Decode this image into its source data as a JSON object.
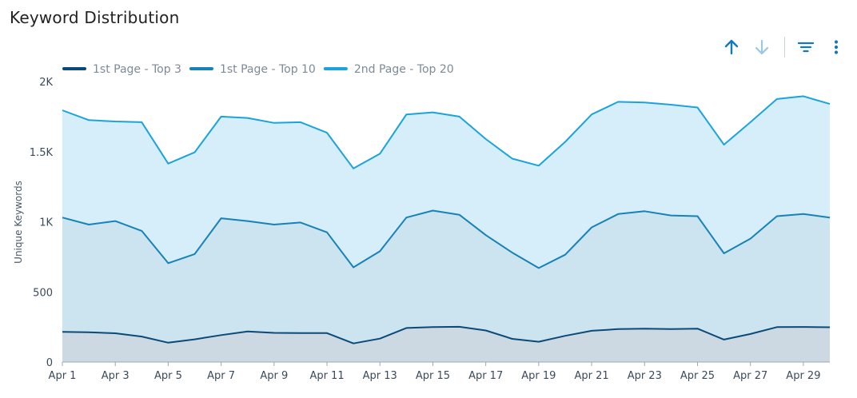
{
  "header": {
    "title": "Keyword Distribution"
  },
  "toolbar": {
    "buttons": [
      {
        "icon": "arrow-up-icon",
        "color": "#1479b8"
      },
      {
        "icon": "arrow-down-icon",
        "color": "#9cc7e4"
      },
      {
        "icon": "filter-icon",
        "color": "#1479b8"
      },
      {
        "icon": "more-vertical-icon",
        "color": "#1479b8"
      }
    ]
  },
  "chart_data": {
    "type": "area",
    "title": "",
    "xlabel": "",
    "ylabel": "Unique Keywords",
    "ylim": [
      0,
      2000
    ],
    "yticks": [
      {
        "value": 0,
        "label": "0"
      },
      {
        "value": 500,
        "label": "500"
      },
      {
        "value": 1000,
        "label": "1K"
      },
      {
        "value": 1500,
        "label": "1.5K"
      },
      {
        "value": 2000,
        "label": "2K"
      }
    ],
    "grid": false,
    "legend": "top-left",
    "x": [
      "Apr 1",
      "Apr 2",
      "Apr 3",
      "Apr 4",
      "Apr 5",
      "Apr 6",
      "Apr 7",
      "Apr 8",
      "Apr 9",
      "Apr 10",
      "Apr 11",
      "Apr 12",
      "Apr 13",
      "Apr 14",
      "Apr 15",
      "Apr 16",
      "Apr 17",
      "Apr 18",
      "Apr 19",
      "Apr 20",
      "Apr 21",
      "Apr 22",
      "Apr 23",
      "Apr 24",
      "Apr 25",
      "Apr 26",
      "Apr 27",
      "Apr 28",
      "Apr 29",
      "Apr 30"
    ],
    "xtick_labels": [
      "Apr 1",
      "Apr 3",
      "Apr 5",
      "Apr 7",
      "Apr 9",
      "Apr 11",
      "Apr 13",
      "Apr 15",
      "Apr 17",
      "Apr 19",
      "Apr 21",
      "Apr 23",
      "Apr 25",
      "Apr 27",
      "Apr 29"
    ],
    "series": [
      {
        "name": "2nd Page - Top 20",
        "color": "#1aa3dc",
        "fill": "#d6eef9",
        "values": [
          1795,
          1725,
          1715,
          1710,
          1415,
          1495,
          1750,
          1740,
          1705,
          1710,
          1635,
          1380,
          1485,
          1765,
          1780,
          1750,
          1590,
          1450,
          1400,
          1570,
          1765,
          1855,
          1850,
          1835,
          1815,
          1550,
          1710,
          1875,
          1895,
          1840
        ]
      },
      {
        "name": "1st Page - Top 10",
        "color": "#1682b8",
        "fill": "#cce4f0",
        "values": [
          1030,
          980,
          1005,
          935,
          705,
          770,
          1025,
          1005,
          980,
          995,
          925,
          675,
          790,
          1030,
          1080,
          1050,
          905,
          780,
          670,
          765,
          960,
          1055,
          1075,
          1045,
          1040,
          775,
          880,
          1040,
          1055,
          1030
        ]
      },
      {
        "name": "1st Page - Top 3",
        "color": "#0b4a78",
        "fill": "#cdd9e2",
        "values": [
          215,
          212,
          205,
          182,
          138,
          162,
          192,
          218,
          208,
          206,
          206,
          133,
          167,
          243,
          249,
          251,
          225,
          165,
          145,
          187,
          223,
          235,
          238,
          235,
          238,
          160,
          200,
          249,
          250,
          248
        ]
      }
    ]
  }
}
